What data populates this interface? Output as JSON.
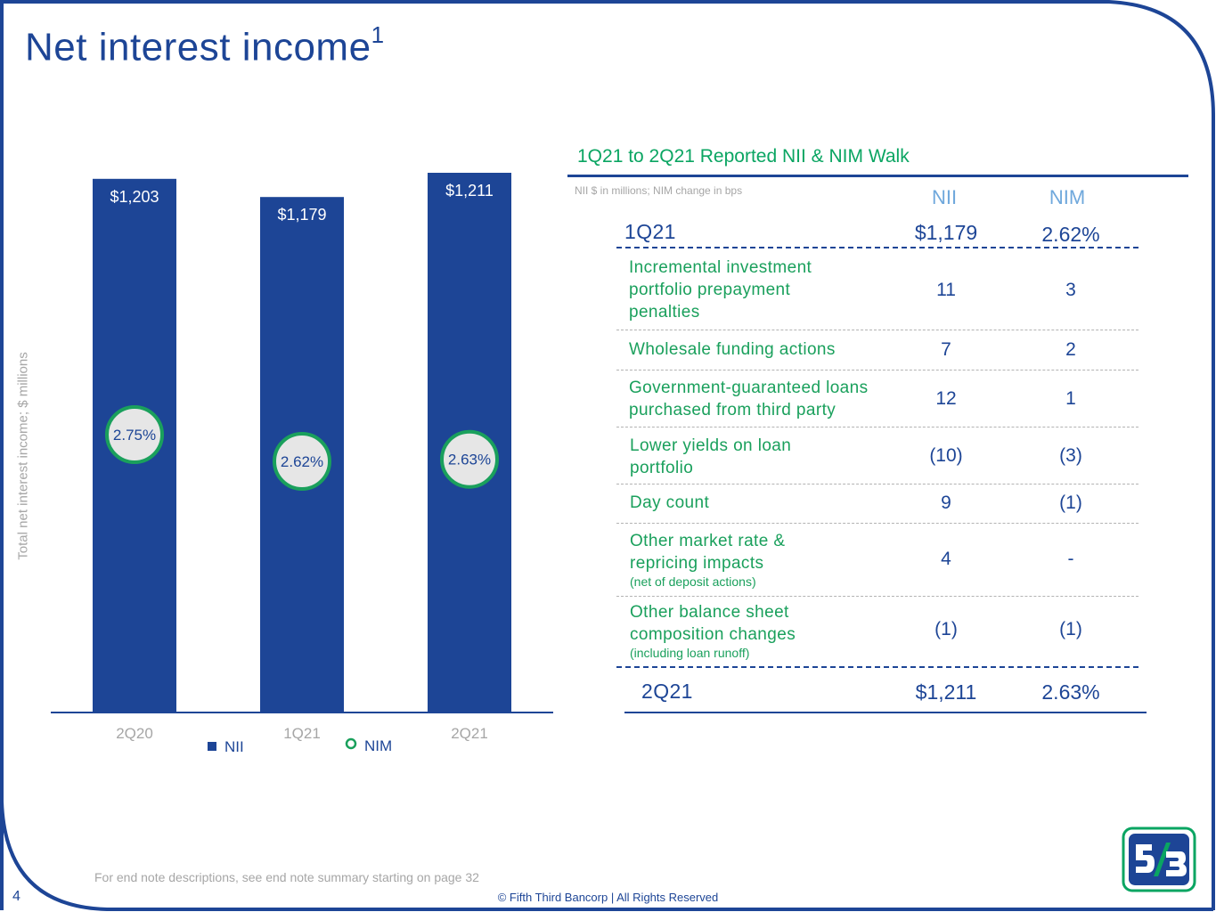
{
  "slide": {
    "title": "Net interest income",
    "title_sup": "1",
    "page_number": "4",
    "endnote": "For end note descriptions, see end note summary starting on page 32",
    "copyright": "© Fifth Third Bancorp | All Rights Reserved"
  },
  "colors": {
    "navy": "#1d4596",
    "green": "#1aa05c",
    "nim_fill": "#e6e6e6",
    "light_blue": "#6fa8dc",
    "gray": "#a6a6a6"
  },
  "chart_data": {
    "type": "bar",
    "categories": [
      "2Q20",
      "1Q21",
      "2Q21"
    ],
    "series": [
      {
        "name": "NII",
        "values": [
          1203,
          1179,
          1211
        ],
        "labels": [
          "$1,203",
          "$1,179",
          "$1,211"
        ]
      },
      {
        "name": "NIM",
        "values": [
          2.75,
          2.62,
          2.63
        ],
        "labels": [
          "2.75%",
          "2.62%",
          "2.63%"
        ]
      }
    ],
    "ylabel": "Total net interest income; $ millions",
    "legend": [
      "NII",
      "NIM"
    ],
    "legend_position": "bottom"
  },
  "walk": {
    "title": "1Q21 to 2Q21 Reported NII & NIM Walk",
    "note": "NII $ in millions; NIM change in bps",
    "col_nii": "NII",
    "col_nim": "NIM",
    "start": {
      "label": "1Q21",
      "nii": "$1,179",
      "nim": "2.62%"
    },
    "rows": [
      {
        "label": "Incremental investment\nportfolio prepayment\npenalties",
        "sub": "",
        "nii": "11",
        "nim": "3"
      },
      {
        "label": "Wholesale funding actions",
        "sub": "",
        "nii": "7",
        "nim": "2"
      },
      {
        "label": "Government-guaranteed loans\npurchased from third party",
        "sub": "",
        "nii": "12",
        "nim": "1"
      },
      {
        "label": "Lower yields on loan\nportfolio",
        "sub": "",
        "nii": "(10)",
        "nim": "(3)"
      },
      {
        "label": "Day count",
        "sub": "",
        "nii": "9",
        "nim": "(1)"
      },
      {
        "label": "Other market rate &\nrepricing impacts",
        "sub": "(net of deposit actions)",
        "nii": "4",
        "nim": "-"
      },
      {
        "label": "Other balance sheet\ncomposition changes",
        "sub": "(including loan runoff)",
        "nii": "(1)",
        "nim": "(1)"
      }
    ],
    "end": {
      "label": "2Q21",
      "nii": "$1,211",
      "nim": "2.63%"
    }
  }
}
